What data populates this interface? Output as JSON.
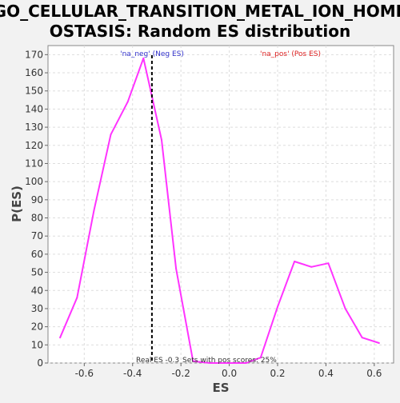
{
  "chart_data": {
    "type": "line",
    "title_lines": [
      "GO_CELLULAR_TRANSITION_METAL_ION_HOME",
      "OSTASIS: Random ES distribution"
    ],
    "xlabel": "ES",
    "ylabel": "P(ES)",
    "xlim": [
      -0.75,
      0.68
    ],
    "ylim": [
      0,
      175
    ],
    "xticks": [
      -0.6,
      -0.4,
      -0.2,
      0.0,
      0.2,
      0.4,
      0.6
    ],
    "xtick_labels": [
      "-0.6",
      "-0.4",
      "-0.2",
      "0.0",
      "0.2",
      "0.4",
      "0.6"
    ],
    "yticks": [
      0,
      10,
      20,
      30,
      40,
      50,
      60,
      70,
      80,
      90,
      100,
      110,
      120,
      130,
      140,
      150,
      160,
      170
    ],
    "grid": true,
    "series": [
      {
        "color": "#ff33ff",
        "x": [
          -0.7,
          -0.63,
          -0.56,
          -0.49,
          -0.42,
          -0.355,
          -0.33,
          -0.28,
          -0.22,
          -0.15,
          -0.08,
          0.0,
          0.07,
          0.13,
          0.2,
          0.27,
          0.34,
          0.41,
          0.48,
          0.55,
          0.62
        ],
        "y": [
          14,
          36,
          84,
          126,
          144,
          168,
          153,
          123,
          52,
          1,
          0,
          0,
          0,
          3,
          31,
          56,
          53,
          55,
          30,
          14,
          11
        ]
      }
    ],
    "real_es": -0.32,
    "real_es_color": "#000000",
    "legend": [
      {
        "label": "'na_neg' (Neg ES)",
        "color": "#3333cc"
      },
      {
        "label": "'na_pos' (Pos ES)",
        "color": "#dd2222"
      }
    ],
    "annotations": {
      "real_es": "Real ES -0.3",
      "pos_scores": "Sets with pos scores: 25%"
    }
  }
}
